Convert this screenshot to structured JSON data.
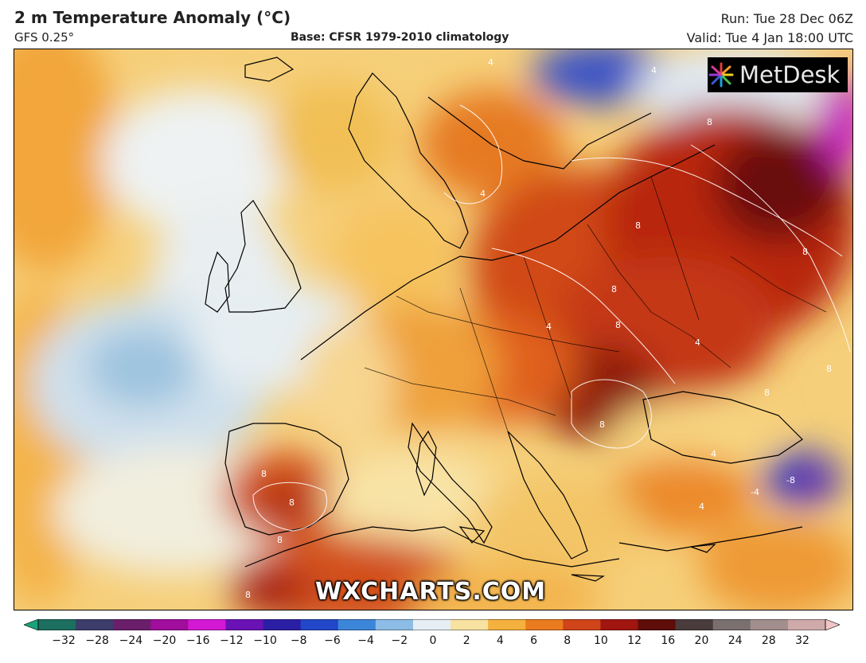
{
  "header": {
    "title": "2 m Temperature Anomaly (°C)",
    "model": "GFS 0.25°",
    "base": "Base: CFSR 1979-2010 climatology",
    "run": "Run: Tue 28 Dec 06Z",
    "valid": "Valid: Tue 4 Jan 18:00 UTC"
  },
  "logo": {
    "text": "MetDesk"
  },
  "watermark": "WXCHARTS.COM",
  "map": {
    "variable": "2 m temperature anomaly",
    "region": "Europe",
    "contour_labels": [
      "4",
      "4",
      "4",
      "8",
      "8",
      "8",
      "8",
      "8",
      "8",
      "4",
      "8",
      "8",
      "4",
      "8",
      "8",
      "8",
      "4",
      "-8",
      "-4",
      "4",
      "8"
    ]
  },
  "colorbar": {
    "ticks": [
      "−32",
      "−28",
      "−24",
      "−20",
      "−16",
      "−12",
      "−10",
      "−8",
      "−6",
      "−4",
      "−2",
      "0",
      "2",
      "4",
      "6",
      "8",
      "10",
      "12",
      "16",
      "20",
      "24",
      "28",
      "32"
    ],
    "colors": [
      "#1aa27a",
      "#1d6f5f",
      "#3c3d6b",
      "#6b1f6b",
      "#a10d9c",
      "#d419d4",
      "#6a12b6",
      "#2b1fa6",
      "#2247c8",
      "#3c86d9",
      "#8dbde6",
      "#e6eef4",
      "#f7e2a2",
      "#f5b13d",
      "#ea7b1f",
      "#d0441a",
      "#a11610",
      "#5e0d0a",
      "#4a3c3c",
      "#7b7070",
      "#a38e8e",
      "#cfaaaa",
      "#f2c6c6"
    ]
  }
}
